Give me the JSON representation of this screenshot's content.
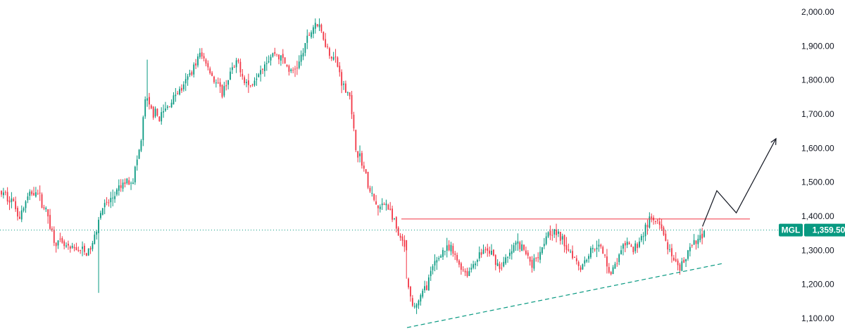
{
  "chart_data": {
    "type": "candlestick",
    "title": "",
    "ylim": [
      1070,
      2010
    ],
    "y_ticks": [
      "1,100.00",
      "1,200.00",
      "1,300.00",
      "1,400.00",
      "1,500.00",
      "1,600.00",
      "1,700.00",
      "1,800.00",
      "1,900.00",
      "2,000.00"
    ],
    "y_tick_values": [
      1100,
      1200,
      1300,
      1400,
      1500,
      1600,
      1700,
      1800,
      1900,
      2000
    ],
    "grid": false,
    "colors": {
      "up": "#089981",
      "down": "#f23645",
      "resistance": "#f23645",
      "support": "#089981",
      "projection": "#131722",
      "last_price_line": "#089981"
    },
    "symbol_badge": {
      "symbol": "MGL",
      "price": "1,359.50"
    },
    "last_price": 1359.5,
    "resistance_level": 1392,
    "support_trendline": {
      "start_bar": 0.44,
      "start_price": 1073,
      "end_bar": 0.85,
      "end_price": 1262
    },
    "projection_path": [
      [
        0.848,
        1370
      ],
      [
        0.865,
        1475
      ],
      [
        0.888,
        1410
      ],
      [
        0.935,
        1628
      ]
    ],
    "ohlc_key": [
      "open",
      "high",
      "low",
      "close"
    ],
    "candles": []
  }
}
